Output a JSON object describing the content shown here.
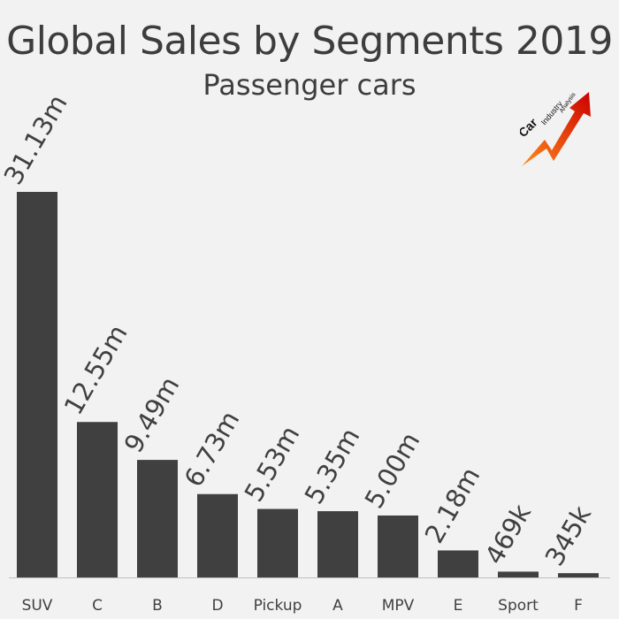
{
  "chart_data": {
    "type": "bar",
    "title": "Global Sales by Segments 2019",
    "subtitle": "Passenger cars",
    "xlabel": "",
    "ylabel": "",
    "categories": [
      "SUV",
      "C",
      "B",
      "D",
      "Pickup",
      "A",
      "MPV",
      "E",
      "Sport",
      "F"
    ],
    "values": [
      31.13,
      12.55,
      9.49,
      6.73,
      5.53,
      5.35,
      5.0,
      2.18,
      0.469,
      0.345
    ],
    "data_labels": [
      "31.13m",
      "12.55m",
      "9.49m",
      "6.73m",
      "5.53m",
      "5.35m",
      "5.00m",
      "2.18m",
      "469k",
      "345k"
    ],
    "unit": "million units",
    "ylim": [
      0,
      31.13
    ],
    "grid": false,
    "legend": "none",
    "bar_color": "#404040",
    "axis_color": "#bfbfbf"
  },
  "logo": {
    "word1": "Car",
    "word2": "Industry",
    "word3": "Analysis",
    "icon": "rising-arrow-icon",
    "arrow_color_start": "#ff8c1a",
    "arrow_color_end": "#cc0000"
  }
}
